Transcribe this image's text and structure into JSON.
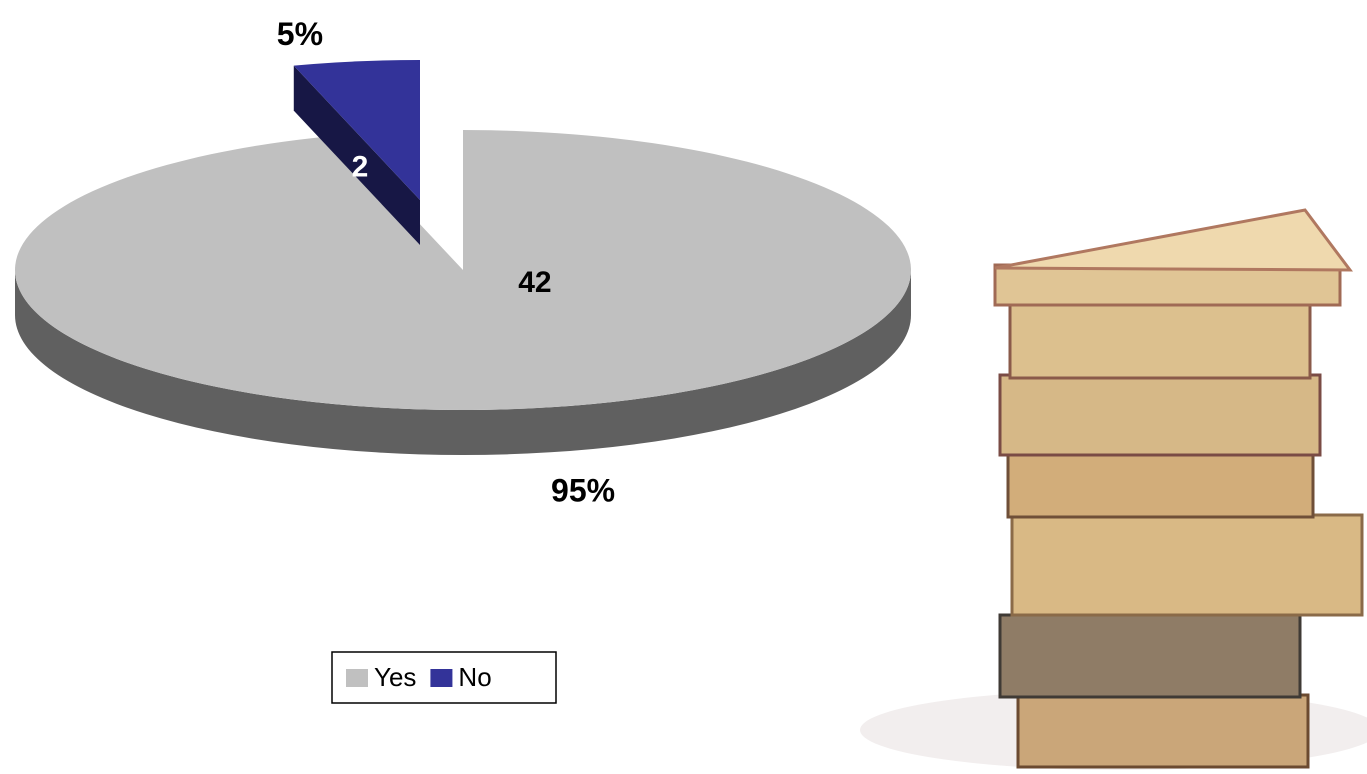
{
  "chart_data": {
    "type": "pie3d",
    "categories": [
      "Yes",
      "No"
    ],
    "values": [
      42,
      2
    ],
    "percentages": [
      {
        "value": 95,
        "label": "95%"
      },
      {
        "value": 5,
        "label": "5%"
      }
    ],
    "colors": [
      "#c0c0c0",
      "#333399"
    ],
    "legend": "bottom"
  }
}
